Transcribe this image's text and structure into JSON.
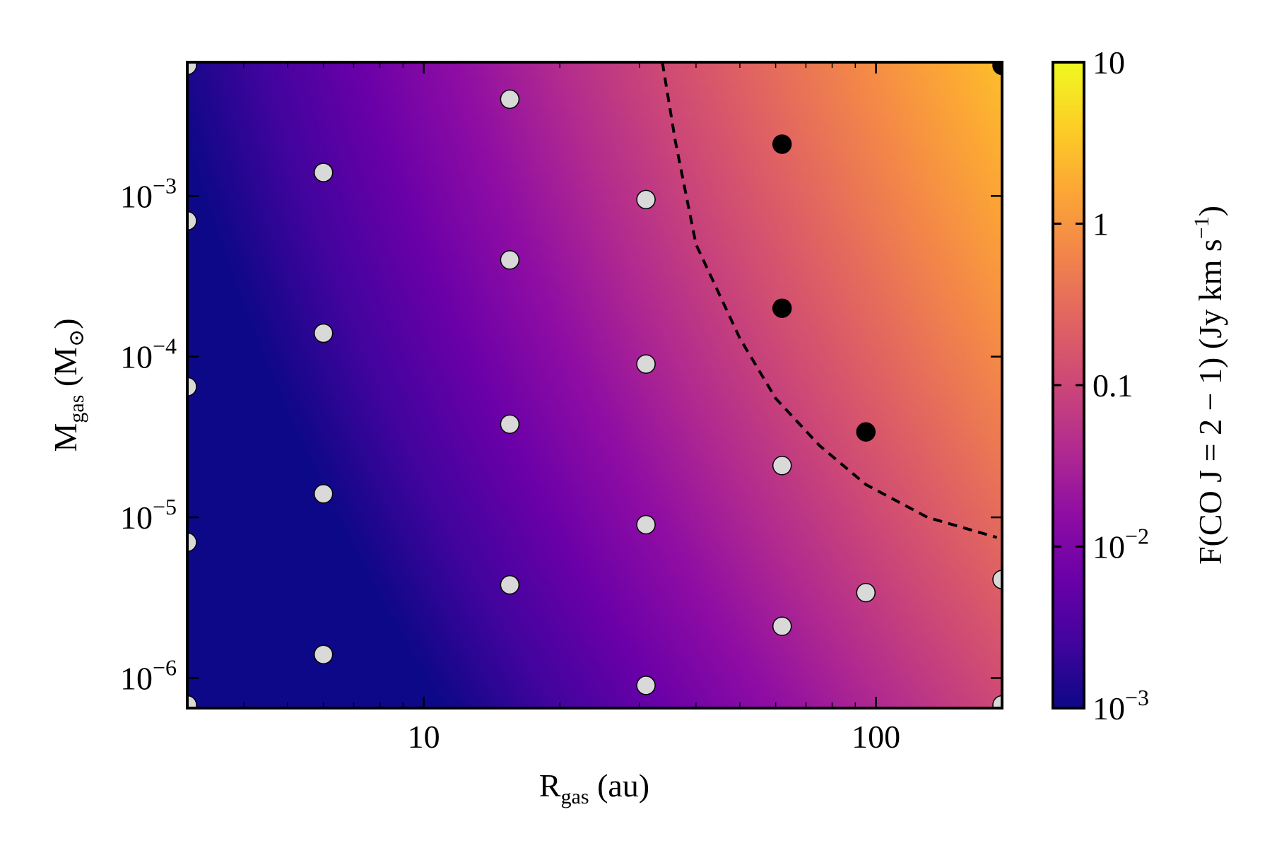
{
  "chart_data": {
    "type": "heatmap",
    "title": "",
    "xlabel": {
      "main": "R",
      "sub": "gas",
      "rest": " (au)"
    },
    "ylabel": {
      "main": "M",
      "sub": "gas",
      "rest": " (M",
      "sun": "⊙",
      "close": ")"
    },
    "colorbar_label": {
      "prefix": "F(CO  J = 2 − 1)  (Jy km s",
      "sup": "−1",
      "suffix": ")"
    },
    "x_scale": "log",
    "y_scale": "log",
    "xlim": [
      3,
      190
    ],
    "ylim": [
      6.5e-07,
      0.0068
    ],
    "x_ticks": [
      {
        "value": 10,
        "label": "10"
      },
      {
        "value": 100,
        "label": "100"
      }
    ],
    "y_ticks": [
      {
        "value": 0.001,
        "base": "10",
        "exp": "−3"
      },
      {
        "value": 0.0001,
        "base": "10",
        "exp": "−4"
      },
      {
        "value": 1e-05,
        "base": "10",
        "exp": "−5"
      },
      {
        "value": 1e-06,
        "base": "10",
        "exp": "−6"
      }
    ],
    "colormap": "plasma",
    "colorbar_range": [
      0.001,
      10
    ],
    "colorbar_ticks": [
      {
        "value": 10,
        "base": "10",
        "exp": ""
      },
      {
        "value": 1,
        "base": "1",
        "exp": ""
      },
      {
        "value": 0.1,
        "base": "0.1",
        "exp": ""
      },
      {
        "value": 0.01,
        "base": "10",
        "exp": "−2"
      },
      {
        "value": 0.001,
        "base": "10",
        "exp": "−3"
      }
    ],
    "detection_threshold_curve": {
      "style": "dashed",
      "points": [
        [
          33.7,
          0.0068
        ],
        [
          36,
          0.0022
        ],
        [
          40,
          0.0005
        ],
        [
          50,
          0.00013
        ],
        [
          60,
          5.5e-05
        ],
        [
          75,
          2.8e-05
        ],
        [
          95,
          1.6e-05
        ],
        [
          130,
          1e-05
        ],
        [
          185,
          7.5e-06
        ]
      ]
    },
    "series": [
      {
        "marker": "light-gray circle",
        "color": "#d9d9d9",
        "points": [
          [
            3,
            0.0065
          ],
          [
            3,
            0.0007
          ],
          [
            3,
            6.5e-05
          ],
          [
            3,
            7e-06
          ],
          [
            3,
            6.8e-07
          ],
          [
            6,
            0.0014
          ],
          [
            6,
            0.00014
          ],
          [
            6,
            1.4e-05
          ],
          [
            6,
            1.4e-06
          ],
          [
            15.5,
            0.004
          ],
          [
            15.5,
            0.0004
          ],
          [
            15.5,
            3.8e-05
          ],
          [
            15.5,
            3.8e-06
          ],
          [
            31,
            0.00095
          ],
          [
            31,
            9e-05
          ],
          [
            31,
            9e-06
          ],
          [
            31,
            9e-07
          ],
          [
            62,
            2.1e-05
          ],
          [
            62,
            2.1e-06
          ],
          [
            95,
            3.4e-06
          ],
          [
            190,
            4.1e-06
          ],
          [
            190,
            6.8e-07
          ]
        ]
      },
      {
        "marker": "black circle",
        "color": "#000000",
        "points": [
          [
            62,
            0.0021
          ],
          [
            62,
            0.0002
          ],
          [
            95,
            3.4e-05
          ],
          [
            190,
            0.0065
          ]
        ]
      }
    ]
  }
}
